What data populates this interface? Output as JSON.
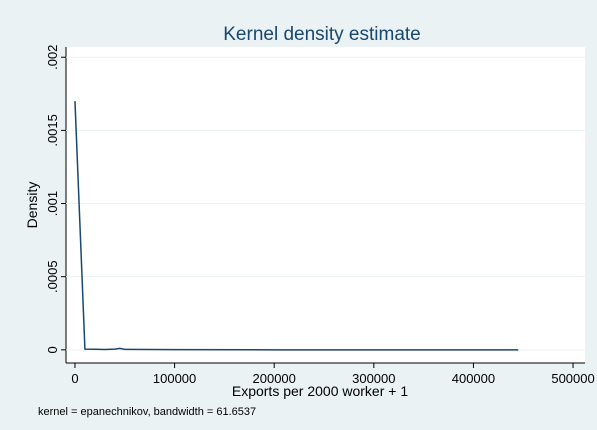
{
  "chart_data": {
    "type": "line",
    "title": "Kernel density estimate",
    "xlabel": "Exports per 2000 worker + 1",
    "ylabel": "Density",
    "note": "kernel = epanechnikov, bandwidth = 61.6537",
    "x": [
      1,
      10000,
      20000,
      30000,
      40000,
      45000,
      50000,
      100000,
      200000,
      300000,
      445000
    ],
    "series": [
      {
        "color": "#1a476f",
        "values": [
          0.0017,
          5e-06,
          4e-06,
          2e-06,
          5e-06,
          1e-05,
          3e-06,
          1e-06,
          0,
          0,
          0
        ]
      }
    ],
    "xlim": [
      -9000,
      512000
    ],
    "ylim": [
      -9e-05,
      0.00207
    ],
    "xticks": [
      0,
      100000,
      200000,
      300000,
      400000,
      500000
    ],
    "yticks": [
      0,
      {
        "value": 0.0005,
        "label": ".0005"
      },
      {
        "value": 0.001,
        "label": ".001"
      },
      {
        "value": 0.0015,
        "label": ".0015"
      },
      {
        "value": 0.002,
        "label": ".002"
      }
    ],
    "grid": true
  }
}
